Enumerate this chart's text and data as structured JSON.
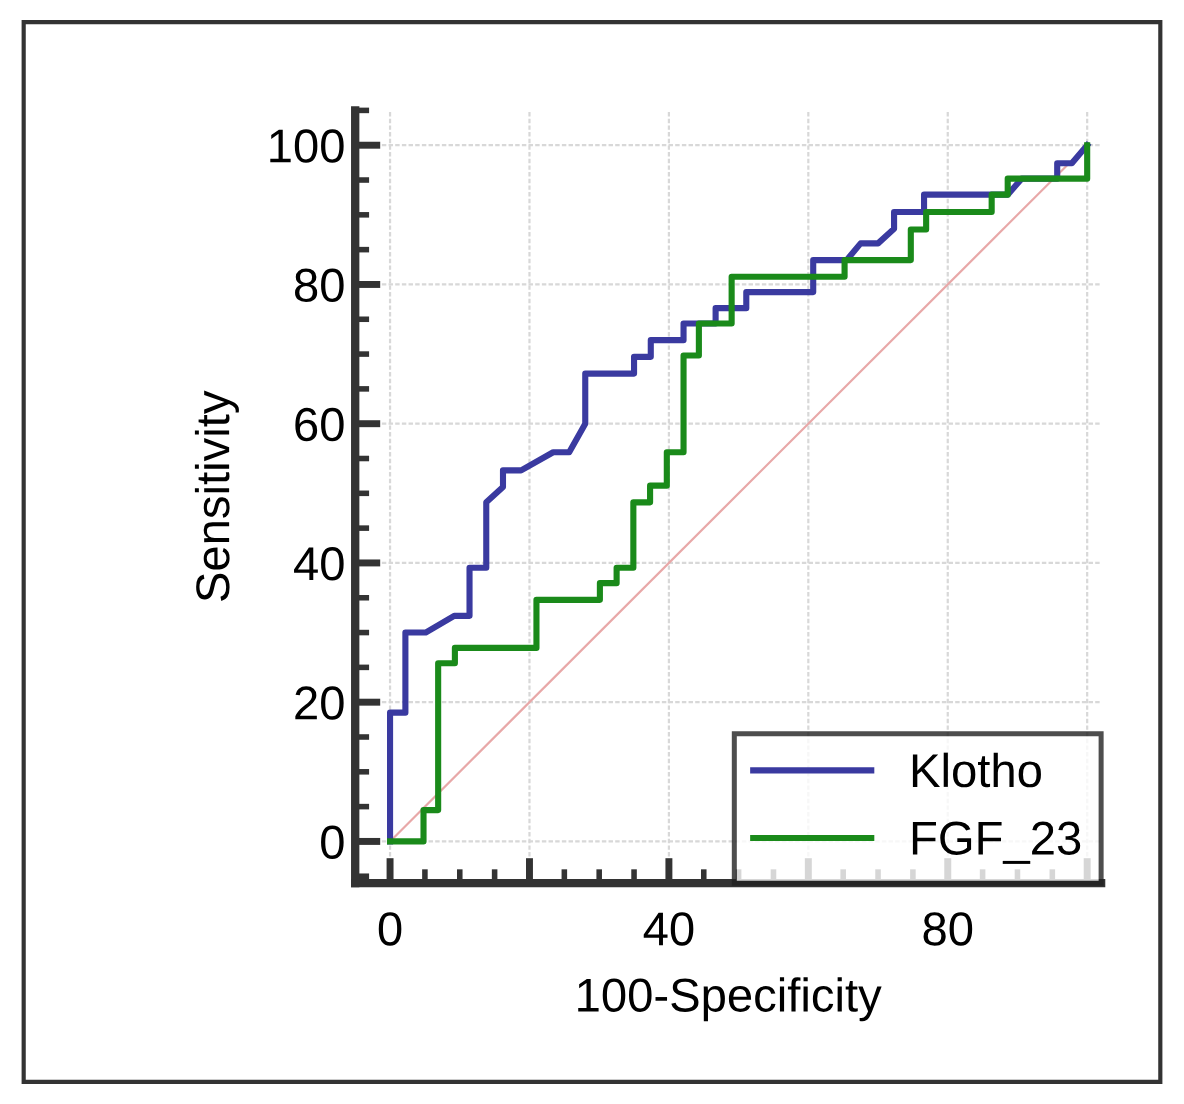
{
  "chart_data": {
    "type": "line",
    "xlabel": "100-Specificity",
    "ylabel": "Sensitivity",
    "xlim": [
      -5,
      102
    ],
    "ylim": [
      -6,
      105
    ],
    "xticks": [
      0,
      {
        "value": 20,
        "label": null
      },
      40,
      {
        "value": 60,
        "label": null
      },
      80,
      {
        "value": 100,
        "label": null
      }
    ],
    "yticks": [
      0,
      20,
      40,
      60,
      80,
      100
    ],
    "grid": true,
    "legend": "bottom right",
    "marker": "none",
    "line_style": "solid",
    "series": [
      {
        "name": "Klotho",
        "color": "#3a3aa0",
        "x": [
          0,
          0,
          2.2,
          2.2,
          5.1,
          9.2,
          11.4,
          11.4,
          13.8,
          13.8,
          16.2,
          16.2,
          18.8,
          23.4,
          25.7,
          28,
          28,
          35,
          35,
          37.4,
          37.4,
          42.1,
          42.1,
          46.7,
          46.7,
          51.1,
          51.1,
          60.7,
          60.7,
          65.5,
          67.5,
          70,
          72.3,
          72.3,
          76.6,
          76.6,
          88.6,
          90.6,
          95.7,
          95.7,
          97.8,
          100
        ],
        "values": [
          0,
          18.5,
          18.5,
          30,
          30,
          32.4,
          32.4,
          39.3,
          39.3,
          48.7,
          50.9,
          53.3,
          53.3,
          55.9,
          55.9,
          60,
          67.2,
          67.2,
          69.6,
          69.6,
          72,
          72,
          74.4,
          74.4,
          76.6,
          76.6,
          78.9,
          78.9,
          83.5,
          83.5,
          85.9,
          85.9,
          88,
          90.4,
          90.4,
          92.9,
          92.9,
          95.2,
          95.2,
          97.4,
          97.4,
          100
        ]
      },
      {
        "name": "FGF_23",
        "color": "#1a8a1a",
        "x": [
          0,
          4.8,
          4.8,
          6.9,
          6.9,
          9.3,
          9.3,
          21,
          21,
          30.1,
          30.1,
          32.5,
          32.5,
          34.9,
          34.9,
          37.3,
          37.3,
          39.7,
          39.7,
          42.1,
          42.1,
          44.3,
          44.3,
          49,
          49,
          65.2,
          65.2,
          74.7,
          74.7,
          76.9,
          76.9,
          86.3,
          86.3,
          88.6,
          88.6,
          100,
          100
        ],
        "values": [
          0,
          0,
          4.5,
          4.5,
          25.6,
          25.6,
          27.8,
          27.8,
          34.7,
          34.7,
          37.1,
          37.1,
          39.3,
          39.3,
          48.7,
          48.7,
          51.1,
          51.1,
          55.9,
          55.9,
          69.8,
          69.8,
          74.4,
          74.4,
          81.1,
          81.1,
          83.5,
          83.5,
          87.9,
          87.9,
          90.4,
          90.4,
          92.9,
          92.9,
          95.2,
          95.2,
          100
        ]
      },
      {
        "color": "#e8a8a8",
        "x": [
          0,
          100
        ],
        "values": [
          0,
          100
        ]
      }
    ]
  }
}
